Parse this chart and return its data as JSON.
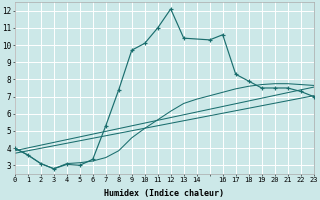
{
  "xlabel": "Humidex (Indice chaleur)",
  "bg_color": "#cce8e8",
  "grid_color": "#b8d8d8",
  "line_color": "#1a6e6e",
  "xlim": [
    0,
    23
  ],
  "ylim": [
    2.5,
    12.5
  ],
  "xtick_labels": [
    "0",
    "1",
    "2",
    "3",
    "4",
    "5",
    "6",
    "7",
    "8",
    "9",
    "10",
    "11",
    "12",
    "13",
    "14",
    "",
    "16",
    "17",
    "18",
    "19",
    "20",
    "21",
    "22",
    "23"
  ],
  "yticks": [
    3,
    4,
    5,
    6,
    7,
    8,
    9,
    10,
    11,
    12
  ],
  "main_x": [
    0,
    1,
    2,
    3,
    4,
    5,
    6,
    7,
    8,
    9,
    10,
    11,
    12,
    13,
    15,
    16,
    17,
    18,
    19,
    20,
    21,
    22,
    23
  ],
  "main_y": [
    4.0,
    3.6,
    3.1,
    2.8,
    3.05,
    3.0,
    3.35,
    5.3,
    7.4,
    9.7,
    10.1,
    11.0,
    12.1,
    10.4,
    10.3,
    10.6,
    8.3,
    7.9,
    7.5,
    7.5,
    7.5,
    7.3,
    7.0
  ],
  "curve2_x": [
    0,
    1,
    2,
    3,
    4,
    5,
    6,
    7,
    8,
    9,
    10,
    11,
    12,
    13,
    14,
    15,
    16,
    17,
    18,
    19,
    20,
    21,
    22,
    23
  ],
  "curve2_y": [
    4.0,
    3.6,
    3.1,
    2.8,
    3.1,
    3.15,
    3.25,
    3.45,
    3.85,
    4.6,
    5.15,
    5.65,
    6.15,
    6.6,
    6.85,
    7.05,
    7.25,
    7.45,
    7.6,
    7.7,
    7.75,
    7.75,
    7.7,
    7.65
  ],
  "line3_x": [
    0,
    23
  ],
  "line3_y": [
    3.7,
    7.05
  ],
  "line4_x": [
    0,
    23
  ],
  "line4_y": [
    3.85,
    7.55
  ]
}
